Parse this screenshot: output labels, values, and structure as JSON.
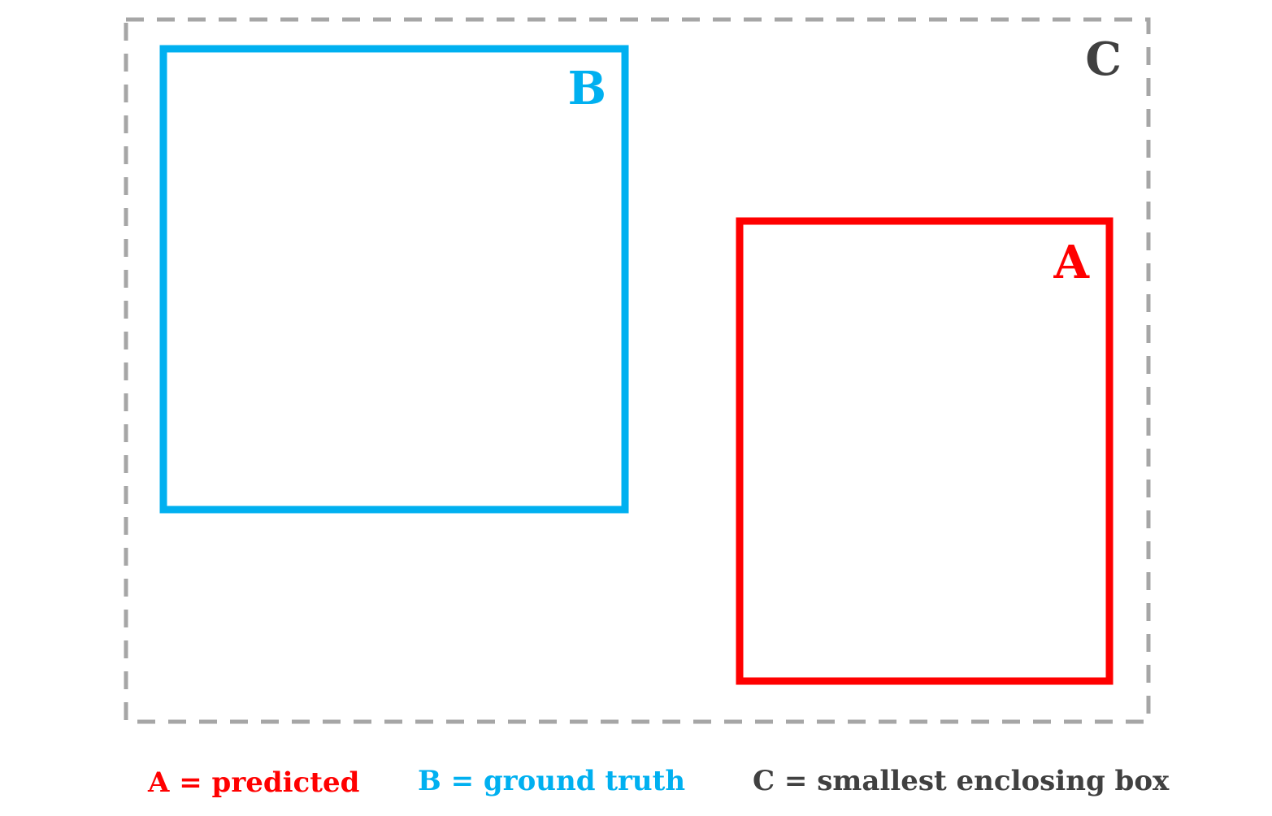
{
  "boxes": [
    {
      "label": "C"
    },
    {
      "label": "B"
    },
    {
      "label": "A"
    }
  ],
  "legend": [
    {
      "text": "A = predicted"
    },
    {
      "text": "B = ground truth"
    },
    {
      "text": "C = smallest enclosing box"
    }
  ]
}
